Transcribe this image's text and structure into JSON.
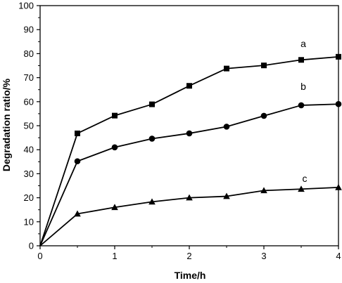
{
  "chart_data": {
    "type": "line",
    "title": "",
    "xlabel": "Time/h",
    "ylabel": "Degradation ratio/%",
    "xlim": [
      0,
      4
    ],
    "ylim": [
      0,
      100
    ],
    "xticks": [
      0,
      1,
      2,
      3,
      4
    ],
    "yticks": [
      0,
      10,
      20,
      30,
      40,
      50,
      60,
      70,
      80,
      90,
      100
    ],
    "grid": false,
    "x": [
      0,
      0.5,
      1,
      1.5,
      2,
      2.5,
      3,
      3.5,
      4
    ],
    "series": [
      {
        "name": "a",
        "marker": "square",
        "color": "#000000",
        "values": [
          0,
          46.8,
          54.2,
          58.9,
          66.6,
          73.8,
          75.1,
          77.4,
          78.7
        ]
      },
      {
        "name": "b",
        "marker": "circle",
        "color": "#000000",
        "values": [
          0,
          35.2,
          41.0,
          44.6,
          46.8,
          49.6,
          54.1,
          58.5,
          59.0
        ]
      },
      {
        "name": "c",
        "marker": "triangle",
        "color": "#000000",
        "values": [
          0,
          13.3,
          16.0,
          18.3,
          20.0,
          20.6,
          23.0,
          23.6,
          24.3
        ]
      }
    ]
  }
}
